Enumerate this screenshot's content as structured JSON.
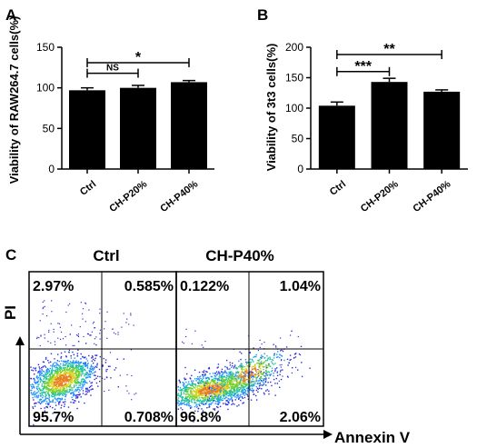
{
  "panel_labels": {
    "a": "A",
    "b": "B",
    "c": "C"
  },
  "chart_data": [
    {
      "type": "bar",
      "panel": "A",
      "categories": [
        "Ctrl",
        "CH-P20%",
        "CH-P40%"
      ],
      "values": [
        97,
        100,
        107
      ],
      "errors": [
        3,
        3,
        2
      ],
      "ylabel": "Viability of RAW264.7 cells(%)",
      "ylim": [
        0,
        150
      ],
      "yticks": [
        "0",
        "50",
        "100",
        "150"
      ],
      "grid": false,
      "significance": [
        {
          "from": 0,
          "to": 1,
          "label": "NS",
          "y": 118
        },
        {
          "from": 0,
          "to": 2,
          "label": "*",
          "y": 131
        }
      ]
    },
    {
      "type": "bar",
      "panel": "B",
      "categories": [
        "Ctrl",
        "CH-P20%",
        "CH-P40%"
      ],
      "values": [
        104,
        143,
        127
      ],
      "errors": [
        6,
        6,
        3
      ],
      "ylabel": "Viability of 3t3 cells(%)",
      "ylim": [
        0,
        200
      ],
      "yticks": [
        "0",
        "50",
        "100",
        "150",
        "200"
      ],
      "grid": false,
      "significance": [
        {
          "from": 0,
          "to": 1,
          "label": "***",
          "y": 160
        },
        {
          "from": 0,
          "to": 2,
          "label": "**",
          "y": 188
        }
      ]
    },
    {
      "type": "scatter",
      "panel": "C",
      "xlabel": "Annexin V",
      "ylabel": "PI",
      "plots": [
        {
          "title": "Ctrl",
          "quadrants": {
            "ul": "2.97%",
            "ur": "0.585%",
            "ll": "95.7%",
            "lr": "0.708%"
          }
        },
        {
          "title": "CH-P40%",
          "quadrants": {
            "ul": "0.122%",
            "ur": "1.04%",
            "ll": "96.8%",
            "lr": "2.06%"
          }
        }
      ]
    }
  ]
}
